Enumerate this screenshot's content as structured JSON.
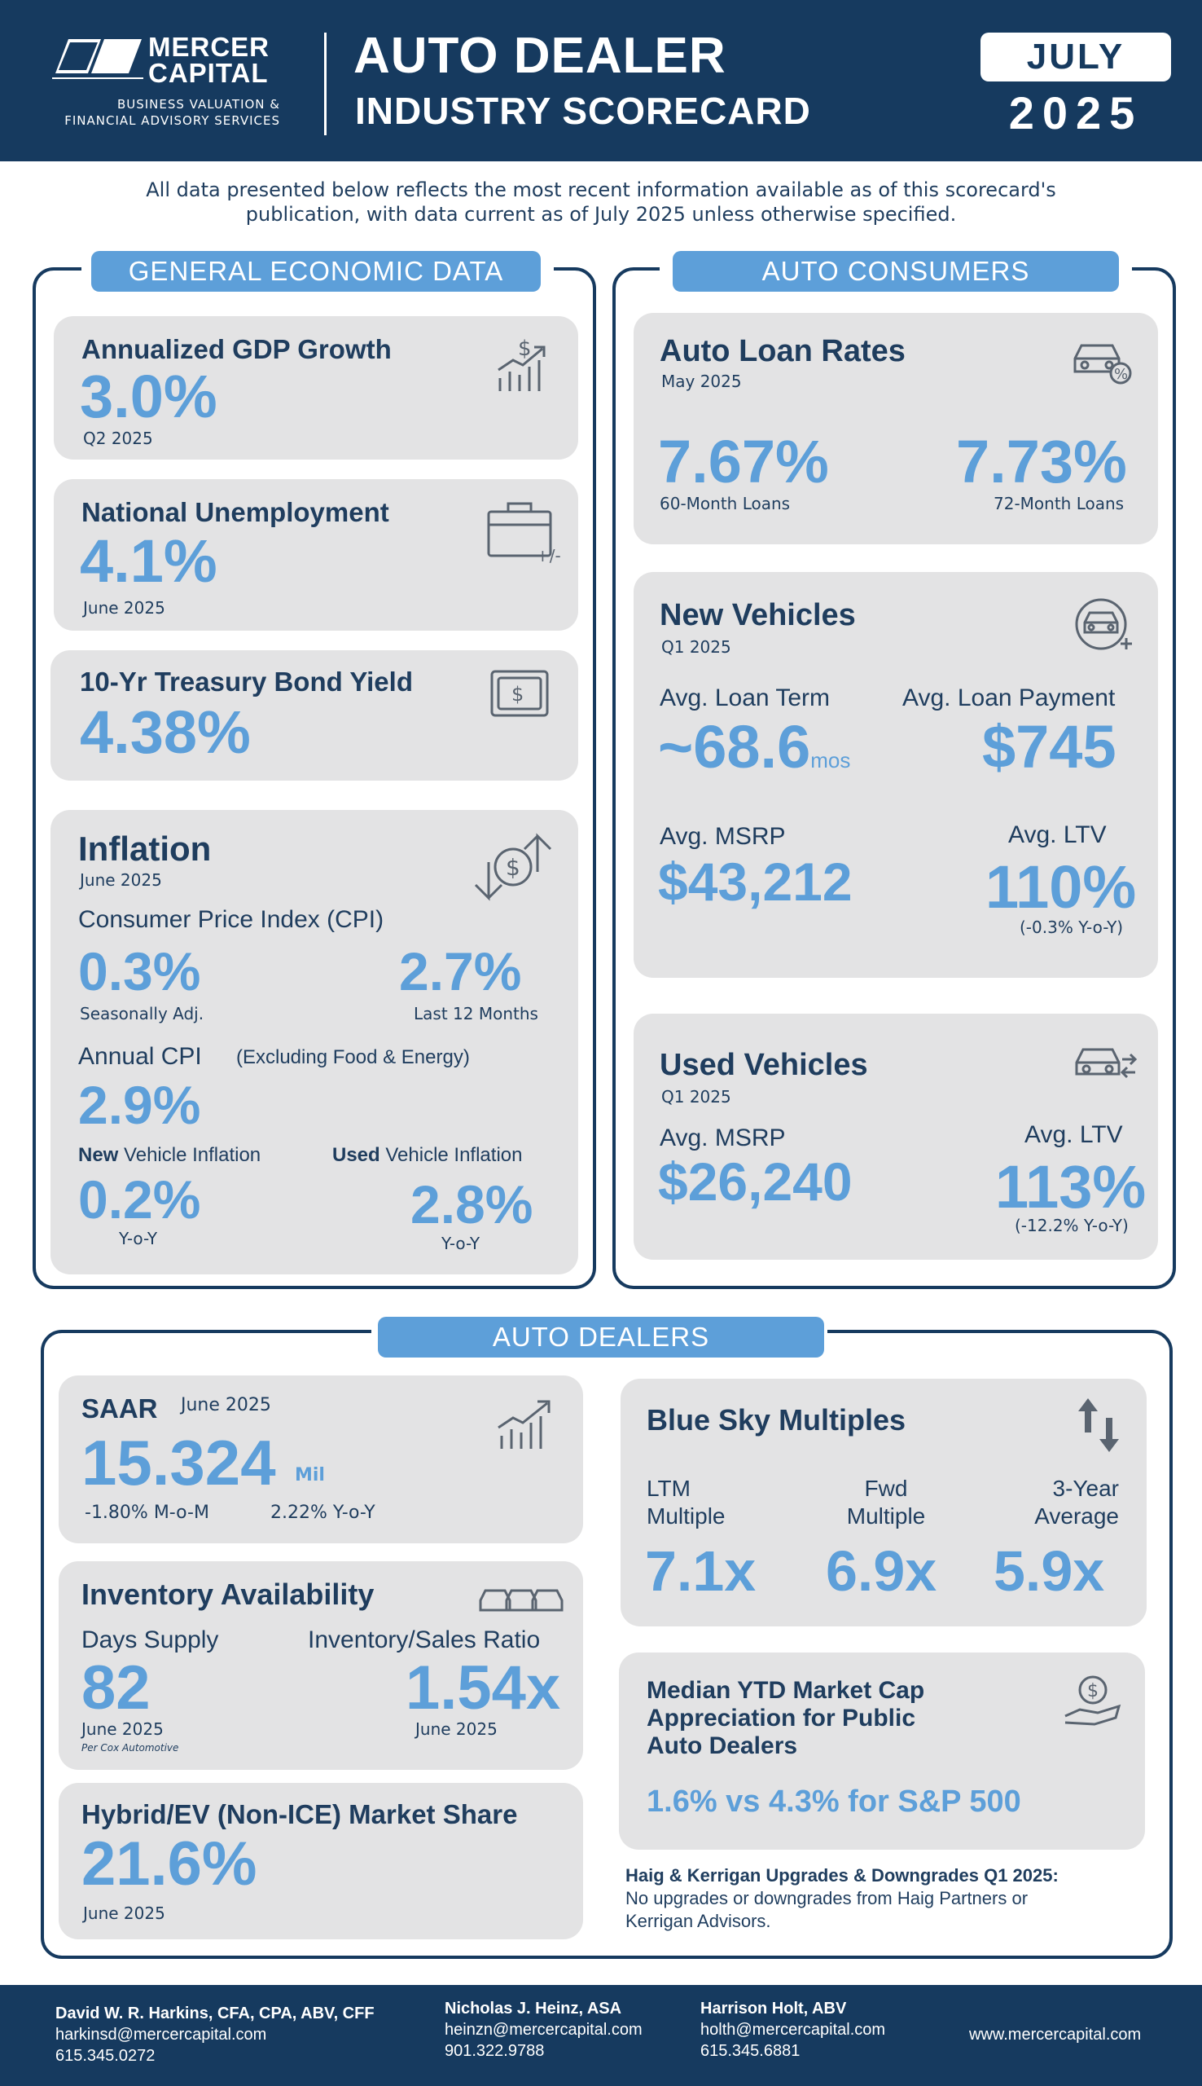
{
  "header": {
    "logo_name_line1": "MERCER",
    "logo_name_line2": "CAPITAL",
    "logo_tag_line1": "BUSINESS VALUATION &",
    "logo_tag_line2": "FINANCIAL ADVISORY SERVICES",
    "title_line1": "AUTO DEALER",
    "title_line2": "INDUSTRY SCORECARD",
    "month": "JULY",
    "year": "2025"
  },
  "intro": {
    "line1": "All data presented below reflects the most recent information available as of this scorecard's",
    "line2": "publication, with data current as of July 2025 unless otherwise specified."
  },
  "general": {
    "label": "GENERAL ECONOMIC DATA",
    "gdp": {
      "title": "Annualized GDP Growth",
      "value": "3.0%",
      "period": "Q2 2025"
    },
    "unemployment": {
      "title": "National Unemployment",
      "value": "4.1%",
      "period": "June 2025",
      "icon_text": "+/-"
    },
    "treasury": {
      "title": "10-Yr Treasury Bond Yield",
      "value": "4.38%"
    },
    "inflation": {
      "title": "Inflation",
      "period": "June 2025",
      "cpi_label": "Consumer Price Index (CPI)",
      "cpi_sa_value": "0.3%",
      "cpi_sa_label": "Seasonally Adj.",
      "cpi_12m_value": "2.7%",
      "cpi_12m_label": "Last 12 Months",
      "annual_label": "Annual CPI",
      "annual_note": "(Excluding Food & Energy)",
      "annual_value": "2.9%",
      "new_bold": "New",
      "new_label": "Vehicle Inflation",
      "new_value": "0.2%",
      "new_yoy": "Y-o-Y",
      "used_bold": "Used",
      "used_label": "Vehicle Inflation",
      "used_value": "2.8%",
      "used_yoy": "Y-o-Y"
    }
  },
  "consumers": {
    "label": "AUTO CONSUMERS",
    "loan_rates": {
      "title": "Auto Loan Rates",
      "period": "May 2025",
      "rate60": "7.67%",
      "rate60_label": "60-Month Loans",
      "rate72": "7.73%",
      "rate72_label": "72-Month Loans"
    },
    "new_vehicles": {
      "title": "New Vehicles",
      "period": "Q1 2025",
      "term_label": "Avg. Loan Term",
      "term_value": "~68.6",
      "term_unit": "mos",
      "payment_label": "Avg. Loan Payment",
      "payment_value": "$745",
      "msrp_label": "Avg. MSRP",
      "msrp_value": "$43,212",
      "ltv_label": "Avg. LTV",
      "ltv_value": "110%",
      "ltv_change": "(-0.3% Y-o-Y)"
    },
    "used_vehicles": {
      "title": "Used Vehicles",
      "period": "Q1 2025",
      "msrp_label": "Avg. MSRP",
      "msrp_value": "$26,240",
      "ltv_label": "Avg. LTV",
      "ltv_value": "113%",
      "ltv_change": "(-12.2% Y-o-Y)"
    }
  },
  "dealers": {
    "label": "AUTO DEALERS",
    "saar": {
      "title": "SAAR",
      "period": "June 2025",
      "value": "15.324",
      "unit": "Mil",
      "mom": "-1.80% M-o-M",
      "yoy": "2.22% Y-o-Y"
    },
    "inventory": {
      "title": "Inventory Availability",
      "days_label": "Days Supply",
      "days_value": "82",
      "days_period": "June 2025",
      "days_source": "Per Cox Automotive",
      "ratio_label": "Inventory/Sales Ratio",
      "ratio_value": "1.54x",
      "ratio_period": "June 2025"
    },
    "hybrid": {
      "title": "Hybrid/EV (Non-ICE) Market Share",
      "value": "21.6%",
      "period": "June 2025"
    },
    "blue_sky": {
      "title": "Blue Sky Multiples",
      "ltm_line1": "LTM",
      "ltm_line2": "Multiple",
      "ltm_value": "7.1x",
      "fwd_line1": "Fwd",
      "fwd_line2": "Multiple",
      "fwd_value": "6.9x",
      "avg_line1": "3-Year",
      "avg_line2": "Average",
      "avg_value": "5.9x"
    },
    "market_cap": {
      "title_line1": "Median YTD Market Cap",
      "title_line2": "Appreciation for Public",
      "title_line3": "Auto Dealers",
      "value": "1.6% vs 4.3% for S&P 500"
    },
    "haig": {
      "title": "Haig & Kerrigan Upgrades & Downgrades Q1 2025:",
      "line1": "No upgrades or downgrades from Haig Partners or",
      "line2": "Kerrigan Advisors."
    }
  },
  "footer": {
    "contacts": [
      {
        "name": "David W. R. Harkins, CFA, CPA, ABV, CFF",
        "email": "harkinsd@mercercapital.com",
        "phone": "615.345.0272"
      },
      {
        "name": "Nicholas J. Heinz, ASA",
        "email": "heinzn@mercercapital.com",
        "phone": "901.322.9788"
      },
      {
        "name": "Harrison Holt, ABV",
        "email": "holth@mercercapital.com",
        "phone": "615.345.6881"
      }
    ],
    "website": "www.mercercapital.com"
  },
  "colors": {
    "navy": "#163a5f",
    "accent": "#5d9fd9",
    "card": "#e3e3e4"
  },
  "icons": [
    "growth-chart-dollar-icon",
    "briefcase-icon",
    "bond-dollar-icon",
    "inflation-arrows-icon",
    "car-percent-icon",
    "car-plus-icon",
    "car-swap-icon",
    "bar-chart-up-icon",
    "cars-row-icon",
    "up-down-arrows-icon",
    "hand-dollar-icon"
  ]
}
